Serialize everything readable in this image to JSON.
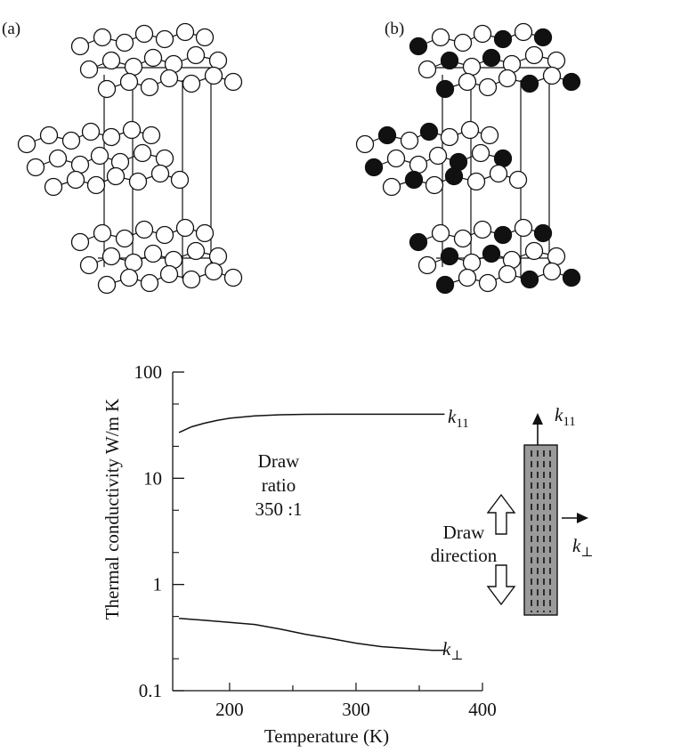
{
  "panels": [
    {
      "label": "(a)",
      "filled_pattern": false
    },
    {
      "label": "(b)",
      "filled_pattern": true
    }
  ],
  "colors": {
    "ink": "#111111",
    "rod_fill": "#999999",
    "page": "#ffffff"
  },
  "chart_data": {
    "type": "line",
    "title": "",
    "xlabel": "Temperature (K)",
    "ylabel": "Thermal conductivity W/m K",
    "xlim": [
      155,
      400
    ],
    "ylim": [
      0.1,
      100
    ],
    "yscale": "log",
    "x_ticks": [
      200,
      300,
      400
    ],
    "y_ticks": [
      0.1,
      1,
      10,
      100
    ],
    "y_tick_labels": [
      "0.1",
      "1",
      "10",
      "100"
    ],
    "grid": false,
    "series": [
      {
        "name": "k11",
        "name_base": "k",
        "name_sub": "11",
        "x": [
          160,
          170,
          180,
          190,
          200,
          220,
          240,
          260,
          280,
          300,
          320,
          340,
          360,
          370
        ],
        "y": [
          27,
          30.5,
          33,
          35,
          36.7,
          38.6,
          39.6,
          40,
          40.1,
          40.1,
          40.1,
          40.1,
          40.1,
          40.1
        ]
      },
      {
        "name": "k⊥",
        "name_base": "k",
        "name_sub": "⊥",
        "x": [
          160,
          180,
          200,
          220,
          240,
          260,
          280,
          300,
          320,
          340,
          360,
          370
        ],
        "y": [
          0.48,
          0.46,
          0.44,
          0.42,
          0.38,
          0.34,
          0.31,
          0.28,
          0.26,
          0.25,
          0.24,
          0.24
        ]
      }
    ],
    "annotations": {
      "draw_ratio": [
        "Draw",
        "ratio",
        "350 :1"
      ],
      "draw_direction": [
        "Draw",
        "direction"
      ],
      "rod_k_parallel": {
        "base": "k",
        "sub": "11"
      },
      "rod_k_perp": {
        "base": "k",
        "sub": "⊥"
      }
    }
  }
}
